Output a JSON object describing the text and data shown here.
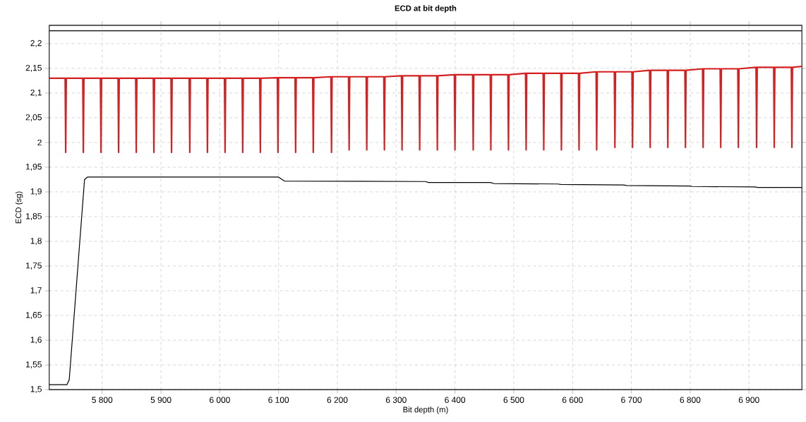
{
  "chart_data": {
    "type": "line",
    "title": "ECD at bit depth",
    "xlabel": "Bit depth (m)",
    "ylabel": "ECD (sg)",
    "xlim": [
      5710,
      6990
    ],
    "ylim": [
      1.5,
      2.237
    ],
    "xticks": [
      {
        "value": 5800,
        "label": "5 800"
      },
      {
        "value": 5900,
        "label": "5 900"
      },
      {
        "value": 6000,
        "label": "6 000"
      },
      {
        "value": 6100,
        "label": "6 100"
      },
      {
        "value": 6200,
        "label": "6 200"
      },
      {
        "value": 6300,
        "label": "6 300"
      },
      {
        "value": 6400,
        "label": "6 400"
      },
      {
        "value": 6500,
        "label": "6 500"
      },
      {
        "value": 6600,
        "label": "6 600"
      },
      {
        "value": 6700,
        "label": "6 700"
      },
      {
        "value": 6800,
        "label": "6 800"
      },
      {
        "value": 6900,
        "label": "6 900"
      }
    ],
    "yticks": [
      {
        "value": 1.5,
        "label": "1,5"
      },
      {
        "value": 1.55,
        "label": "1,55"
      },
      {
        "value": 1.6,
        "label": "1,6"
      },
      {
        "value": 1.65,
        "label": "1,65"
      },
      {
        "value": 1.7,
        "label": "1,7"
      },
      {
        "value": 1.75,
        "label": "1,75"
      },
      {
        "value": 1.8,
        "label": "1,8"
      },
      {
        "value": 1.85,
        "label": "1,85"
      },
      {
        "value": 1.9,
        "label": "1,9"
      },
      {
        "value": 1.95,
        "label": "1,95"
      },
      {
        "value": 2,
        "label": "2"
      },
      {
        "value": 2.05,
        "label": "2,05"
      },
      {
        "value": 2.1,
        "label": "2,1"
      },
      {
        "value": 2.15,
        "label": "2,15"
      },
      {
        "value": 2.2,
        "label": "2,2"
      }
    ],
    "grid": true,
    "marker": "none",
    "series": [
      {
        "color": "#000000",
        "x": [
          5710,
          6990
        ],
        "values": [
          2.226,
          2.226
        ]
      },
      {
        "color": "#000000",
        "x": [
          5710,
          5740,
          5744,
          5770,
          5775,
          6100,
          6110,
          6350,
          6355,
          6460,
          6466,
          6575,
          6580,
          6687,
          6692,
          6799,
          6804,
          6910,
          6915,
          6990
        ],
        "values": [
          1.51,
          1.51,
          1.52,
          1.925,
          1.93,
          1.93,
          1.922,
          1.921,
          1.919,
          1.919,
          1.917,
          1.916,
          1.915,
          1.914,
          1.913,
          1.912,
          1.911,
          1.91,
          1.909,
          1.909
        ]
      },
      {
        "color": "#d42020",
        "x": [
          5710,
          5737,
          5738,
          5739,
          5767,
          5768,
          5769,
          5797,
          5798,
          5799,
          5827,
          5828,
          5829,
          5857,
          5858,
          5859,
          5887,
          5888,
          5889,
          5917,
          5918,
          5919,
          5948,
          5949,
          5950,
          5978,
          5979,
          5980,
          6008,
          6009,
          6010,
          6038,
          6039,
          6040,
          6068,
          6069,
          6070,
          6098,
          6099,
          6100,
          6128,
          6129,
          6130,
          6158,
          6159,
          6160,
          6189,
          6190,
          6191,
          6219,
          6220,
          6221,
          6249,
          6250,
          6251,
          6279,
          6280,
          6281,
          6309,
          6310,
          6311,
          6339,
          6340,
          6341,
          6369,
          6370,
          6371,
          6399,
          6400,
          6401,
          6430,
          6431,
          6432,
          6460,
          6461,
          6462,
          6490,
          6491,
          6492,
          6520,
          6521,
          6522,
          6550,
          6551,
          6552,
          6580,
          6581,
          6582,
          6610,
          6611,
          6612,
          6640,
          6641,
          6642,
          6671,
          6672,
          6673,
          6701,
          6702,
          6703,
          6731,
          6732,
          6733,
          6761,
          6762,
          6763,
          6791,
          6792,
          6793,
          6821,
          6822,
          6823,
          6851,
          6852,
          6853,
          6881,
          6882,
          6883,
          6912,
          6913,
          6914,
          6942,
          6943,
          6944,
          6972,
          6973,
          6974,
          6990
        ],
        "values": [
          2.13,
          2.13,
          1.98,
          2.13,
          2.13,
          1.98,
          2.13,
          2.13,
          1.98,
          2.13,
          2.13,
          1.98,
          2.13,
          2.13,
          1.98,
          2.13,
          2.13,
          1.98,
          2.13,
          2.13,
          1.98,
          2.13,
          2.13,
          1.98,
          2.13,
          2.13,
          1.98,
          2.13,
          2.13,
          1.98,
          2.13,
          2.13,
          1.98,
          2.13,
          2.13,
          1.98,
          2.13,
          2.131,
          1.98,
          2.131,
          2.131,
          1.98,
          2.131,
          2.131,
          1.98,
          2.131,
          2.133,
          1.98,
          2.133,
          2.133,
          1.985,
          2.133,
          2.133,
          1.985,
          2.133,
          2.133,
          1.985,
          2.133,
          2.135,
          1.985,
          2.135,
          2.135,
          1.985,
          2.135,
          2.135,
          1.985,
          2.135,
          2.137,
          1.985,
          2.137,
          2.137,
          1.985,
          2.137,
          2.137,
          1.985,
          2.137,
          2.137,
          1.985,
          2.137,
          2.14,
          1.985,
          2.14,
          2.14,
          1.985,
          2.14,
          2.14,
          1.985,
          2.14,
          2.14,
          1.985,
          2.14,
          2.143,
          1.985,
          2.143,
          2.143,
          1.99,
          2.143,
          2.143,
          1.99,
          2.143,
          2.146,
          1.99,
          2.146,
          2.146,
          1.99,
          2.146,
          2.146,
          1.99,
          2.146,
          2.149,
          1.99,
          2.149,
          2.149,
          1.99,
          2.149,
          2.149,
          1.99,
          2.149,
          2.152,
          1.99,
          2.152,
          2.152,
          1.99,
          2.152,
          2.152,
          1.99,
          2.152,
          2.154
        ]
      }
    ]
  }
}
